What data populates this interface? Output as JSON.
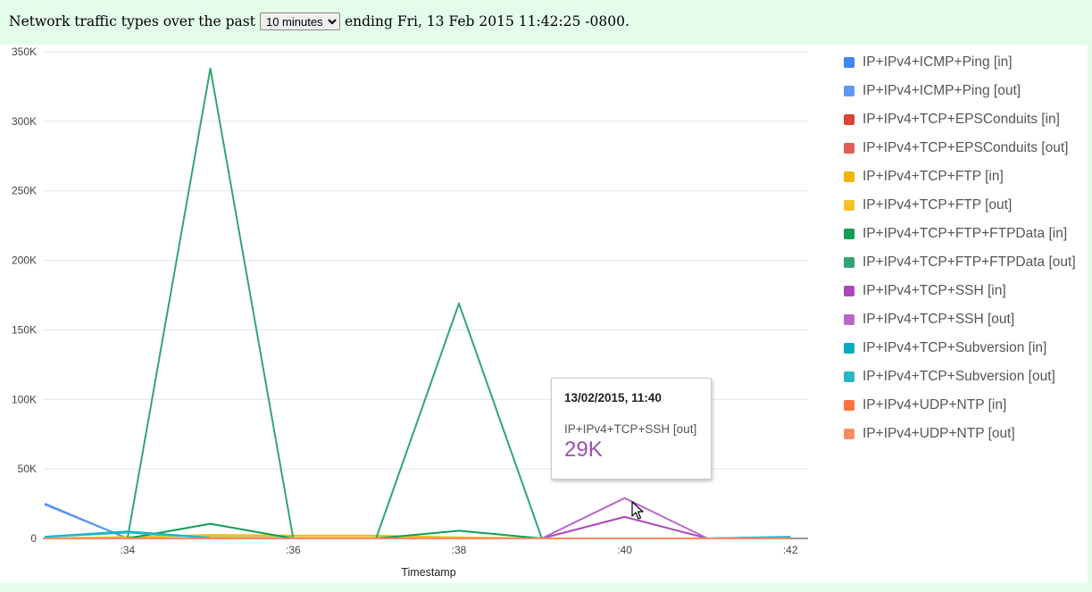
{
  "header": {
    "prefix": "Network traffic types over the past",
    "range_selected": "10 minutes",
    "suffix": "ending Fri, 13 Feb 2015 11:42:25 -0800."
  },
  "chart_data": {
    "type": "line",
    "xlabel": "Timestamp",
    "ylabel": "",
    "x": [
      ":33",
      ":34",
      ":35",
      ":36",
      ":37",
      ":38",
      ":39",
      ":40",
      ":41",
      ":42"
    ],
    "x_tick_labels": [
      ":34",
      ":36",
      ":38",
      ":40",
      ":42"
    ],
    "y_tick_labels": [
      "0",
      "50K",
      "100K",
      "150K",
      "200K",
      "250K",
      "300K",
      "350K"
    ],
    "ylim": [
      0,
      350000
    ],
    "grid": true,
    "legend_position": "right",
    "series": [
      {
        "name": "IP+IPv4+ICMP+Ping [in]",
        "color": "#4285f4",
        "values": [
          25000,
          0,
          0,
          0,
          0,
          0,
          0,
          0,
          0,
          0
        ]
      },
      {
        "name": "IP+IPv4+ICMP+Ping [out]",
        "color": "#5e97f6",
        "values": [
          24500,
          0,
          0,
          0,
          0,
          0,
          0,
          0,
          0,
          0
        ]
      },
      {
        "name": "IP+IPv4+TCP+EPSConduits [in]",
        "color": "#db4437",
        "values": [
          0,
          0,
          0,
          0,
          0,
          0,
          0,
          0,
          0,
          0
        ]
      },
      {
        "name": "IP+IPv4+TCP+EPSConduits [out]",
        "color": "#e06055",
        "values": [
          0,
          0,
          0,
          0,
          0,
          0,
          0,
          0,
          0,
          0
        ]
      },
      {
        "name": "IP+IPv4+TCP+FTP [in]",
        "color": "#f4b400",
        "values": [
          0,
          1000,
          2500,
          2000,
          2000,
          800,
          0,
          0,
          0,
          0
        ]
      },
      {
        "name": "IP+IPv4+TCP+FTP [out]",
        "color": "#f6c026",
        "values": [
          0,
          800,
          2000,
          1500,
          1500,
          600,
          0,
          0,
          0,
          0
        ]
      },
      {
        "name": "IP+IPv4+TCP+FTP+FTPData [in]",
        "color": "#0f9d58",
        "values": [
          0,
          0,
          10500,
          0,
          0,
          5500,
          0,
          0,
          0,
          0
        ]
      },
      {
        "name": "IP+IPv4+TCP+FTP+FTPData [out]",
        "color": "#33a474",
        "values": [
          0,
          0,
          338000,
          0,
          0,
          169000,
          0,
          0,
          0,
          0
        ]
      },
      {
        "name": "IP+IPv4+TCP+SSH [in]",
        "color": "#ab47bc",
        "values": [
          0,
          0,
          0,
          0,
          0,
          0,
          0,
          15500,
          0,
          0
        ]
      },
      {
        "name": "IP+IPv4+TCP+SSH [out]",
        "color": "#ba68c8",
        "values": [
          0,
          0,
          0,
          0,
          0,
          0,
          0,
          29000,
          0,
          0
        ]
      },
      {
        "name": "IP+IPv4+TCP+Subversion [in]",
        "color": "#00acc1",
        "values": [
          1200,
          5000,
          500,
          0,
          0,
          0,
          0,
          0,
          0,
          1200
        ]
      },
      {
        "name": "IP+IPv4+TCP+Subversion [out]",
        "color": "#26b8ca",
        "values": [
          1000,
          4200,
          400,
          0,
          0,
          0,
          0,
          0,
          0,
          1000
        ]
      },
      {
        "name": "IP+IPv4+UDP+NTP [in]",
        "color": "#ff7043",
        "values": [
          0,
          0,
          0,
          0,
          0,
          0,
          0,
          0,
          0,
          0
        ]
      },
      {
        "name": "IP+IPv4+UDP+NTP [out]",
        "color": "#ff8a65",
        "values": [
          0,
          0,
          0,
          0,
          0,
          0,
          0,
          0,
          0,
          0
        ]
      }
    ]
  },
  "tooltip": {
    "title": "13/02/2015, 11:40",
    "series": "IP+IPv4+TCP+SSH [out]",
    "value": "29K",
    "color": "#9c4fad"
  }
}
